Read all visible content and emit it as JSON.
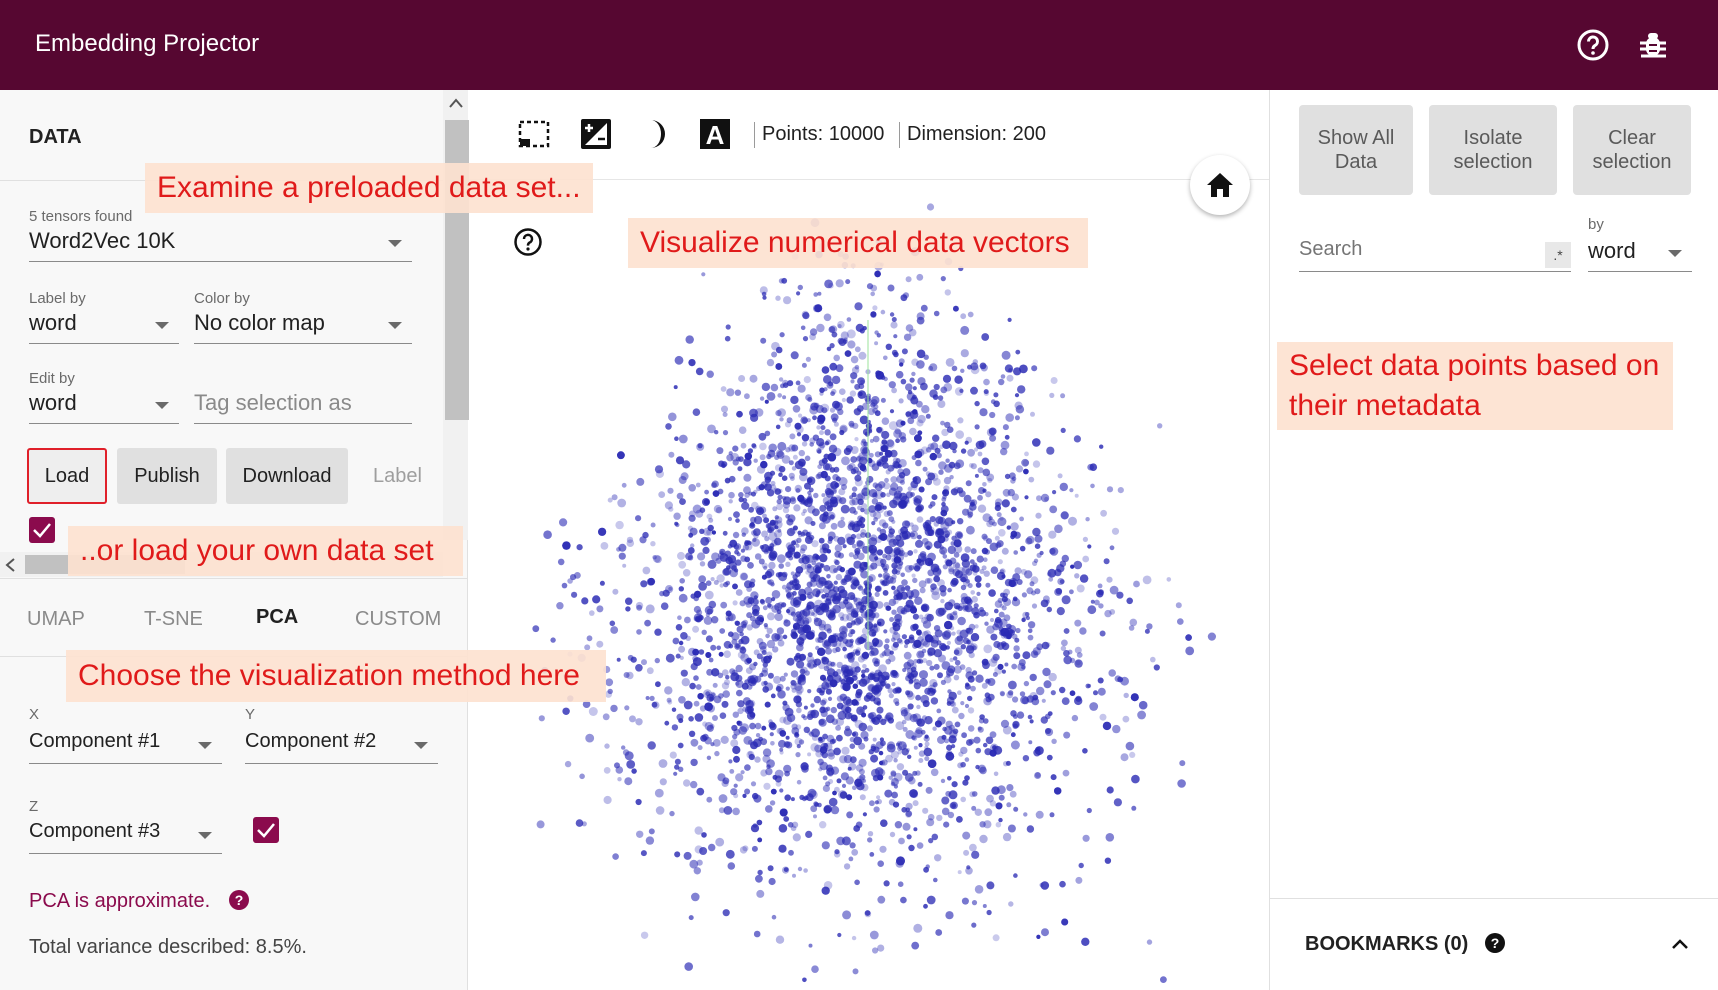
{
  "header": {
    "title": "Embedding Projector"
  },
  "left_panel": {
    "section_title": "DATA",
    "tensors_found": "5 tensors found",
    "tensor_value": "Word2Vec 10K",
    "label_by_label": "Label by",
    "label_by_value": "word",
    "color_by_label": "Color by",
    "color_by_value": "No color map",
    "edit_by_label": "Edit by",
    "edit_by_value": "word",
    "tag_placeholder": "Tag selection as",
    "buttons": {
      "load": "Load",
      "publish": "Publish",
      "download": "Download",
      "label": "Label"
    },
    "tabs": [
      "UMAP",
      "T-SNE",
      "PCA",
      "CUSTOM"
    ],
    "active_tab": "PCA",
    "x_label": "X",
    "x_value": "Component #1",
    "y_label": "Y",
    "y_value": "Component #2",
    "z_label": "Z",
    "z_value": "Component #3",
    "pca_note": "PCA is approximate.",
    "variance": "Total variance described: 8.5%."
  },
  "toolbar": {
    "points": "Points: 10000",
    "dimension": "Dimension: 200"
  },
  "right_panel": {
    "show_all": [
      "Show All",
      "Data"
    ],
    "isolate": [
      "Isolate",
      "selection"
    ],
    "clear": [
      "Clear",
      "selection"
    ],
    "search_placeholder": "Search",
    "regex": ".*",
    "by_label": "by",
    "by_value": "word",
    "bookmarks": "BOOKMARKS (0)"
  },
  "callouts": {
    "preloaded": "Examine a preloaded data set...",
    "vectors": "Visualize numerical data vectors",
    "own_data": "..or load your own data set",
    "method": "Choose the visualization method here",
    "metadata_1": "Select data points based on",
    "metadata_2": "their metadata"
  },
  "colors": {
    "header": "#560731",
    "accent": "#8b0b4d",
    "points": "#2a2ab4",
    "callout_text": "#e01a1a",
    "callout_bg": "#fde2d0"
  },
  "icons": {
    "help": "help-circle-icon",
    "bug": "bug-icon",
    "selection": "selection-box-icon",
    "night": "night-mode-icon",
    "labels": "text-labels-icon",
    "home": "home-icon"
  }
}
